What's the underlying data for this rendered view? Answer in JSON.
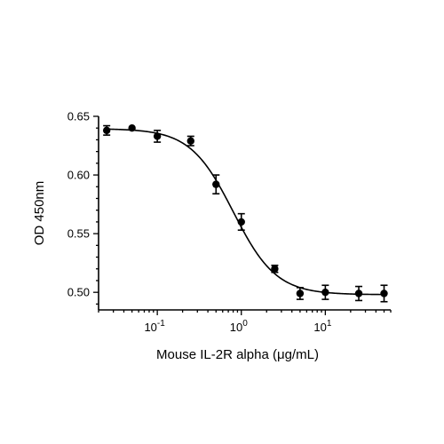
{
  "chart_data": {
    "type": "scatter",
    "xlabel": "Mouse IL-2R alpha (μg/mL)",
    "ylabel": "OD 450nm",
    "x_scale": "log",
    "xlim": [
      0.02,
      60
    ],
    "ylim": [
      0.485,
      0.65
    ],
    "x_ticks": [
      {
        "value": 0.1,
        "base": "10",
        "exp": "-1"
      },
      {
        "value": 1,
        "base": "10",
        "exp": "0"
      },
      {
        "value": 10,
        "base": "10",
        "exp": "1"
      }
    ],
    "y_ticks": [
      {
        "value": 0.5,
        "label": "0.50"
      },
      {
        "value": 0.55,
        "label": "0.55"
      },
      {
        "value": 0.6,
        "label": "0.60"
      },
      {
        "value": 0.65,
        "label": "0.65"
      }
    ],
    "grid": false,
    "legend": "none",
    "series": [
      {
        "points": [
          {
            "x": 0.025,
            "y": 0.638,
            "err": 0.004
          },
          {
            "x": 0.05,
            "y": 0.64,
            "err": 0.0
          },
          {
            "x": 0.1,
            "y": 0.633,
            "err": 0.005
          },
          {
            "x": 0.25,
            "y": 0.629,
            "err": 0.004
          },
          {
            "x": 0.5,
            "y": 0.592,
            "err": 0.008
          },
          {
            "x": 1.0,
            "y": 0.56,
            "err": 0.007
          },
          {
            "x": 2.5,
            "y": 0.52,
            "err": 0.003
          },
          {
            "x": 5.0,
            "y": 0.499,
            "err": 0.005
          },
          {
            "x": 10.0,
            "y": 0.5,
            "err": 0.006
          },
          {
            "x": 25.0,
            "y": 0.499,
            "err": 0.006
          },
          {
            "x": 50.0,
            "y": 0.499,
            "err": 0.007
          }
        ],
        "fit": {
          "model": "4PL",
          "top": 0.6395,
          "bottom": 0.498,
          "ec50": 0.8,
          "hill": 1.7
        }
      }
    ],
    "colors": {
      "marker": "#000000",
      "line": "#000000"
    }
  }
}
